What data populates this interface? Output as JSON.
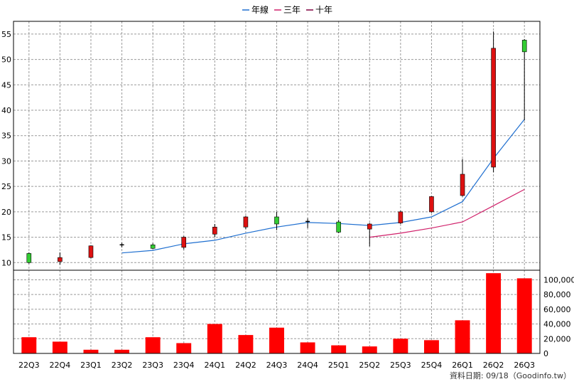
{
  "chart_data": {
    "type": "candlestick",
    "categories": [
      "22Q3",
      "22Q4",
      "23Q1",
      "23Q2",
      "23Q3",
      "23Q4",
      "24Q1",
      "24Q2",
      "24Q3",
      "24Q4",
      "25Q1",
      "25Q2",
      "25Q3",
      "25Q4",
      "26Q1",
      "26Q2",
      "26Q3"
    ],
    "price_axis": {
      "ylim": [
        8.5,
        57.5
      ],
      "ticks": [
        10,
        15,
        20,
        25,
        30,
        35,
        40,
        45,
        50,
        55
      ]
    },
    "volume_axis": {
      "ylim": [
        0,
        113000
      ],
      "ticks": [
        0,
        20000,
        40000,
        60000,
        80000,
        100000
      ],
      "tick_labels": [
        "0",
        "20,000",
        "40,000",
        "60,000",
        "80,000",
        "100,000"
      ]
    },
    "grid": true,
    "legend_position": "top-center",
    "legend": [
      {
        "name": "年線",
        "color": "#1f6fd0"
      },
      {
        "name": "三年",
        "color": "#d0206a"
      },
      {
        "name": "十年",
        "color": "#800040"
      }
    ],
    "candles": [
      {
        "open": 10.0,
        "high": 12.0,
        "low": 9.8,
        "close": 11.8,
        "direction": "up"
      },
      {
        "open": 11.0,
        "high": 12.0,
        "low": 9.6,
        "close": 10.2,
        "direction": "down"
      },
      {
        "open": 13.3,
        "high": 13.4,
        "low": 10.8,
        "close": 11.0,
        "direction": "down"
      },
      {
        "open": 13.3,
        "high": 13.9,
        "low": 13.0,
        "close": 13.5,
        "direction": "flat"
      },
      {
        "open": 12.8,
        "high": 13.8,
        "low": 12.7,
        "close": 13.5,
        "direction": "up"
      },
      {
        "open": 15.0,
        "high": 15.2,
        "low": 12.6,
        "close": 13.0,
        "direction": "down"
      },
      {
        "open": 17.0,
        "high": 17.6,
        "low": 15.0,
        "close": 15.6,
        "direction": "down"
      },
      {
        "open": 19.0,
        "high": 19.2,
        "low": 16.6,
        "close": 17.0,
        "direction": "down"
      },
      {
        "open": 17.6,
        "high": 20.0,
        "low": 16.4,
        "close": 19.0,
        "direction": "up"
      },
      {
        "open": 18.1,
        "high": 18.7,
        "low": 16.8,
        "close": 18.0,
        "direction": "flat"
      },
      {
        "open": 16.0,
        "high": 18.4,
        "low": 15.8,
        "close": 18.0,
        "direction": "up"
      },
      {
        "open": 17.6,
        "high": 17.8,
        "low": 13.2,
        "close": 16.6,
        "direction": "down"
      },
      {
        "open": 20.0,
        "high": 20.2,
        "low": 17.6,
        "close": 17.8,
        "direction": "down"
      },
      {
        "open": 23.0,
        "high": 23.1,
        "low": 19.8,
        "close": 20.0,
        "direction": "down"
      },
      {
        "open": 27.4,
        "high": 30.4,
        "low": 23.0,
        "close": 23.2,
        "direction": "down"
      },
      {
        "open": 52.2,
        "high": 55.5,
        "low": 27.8,
        "close": 28.8,
        "direction": "down"
      },
      {
        "open": 51.5,
        "high": 54.0,
        "low": 38.0,
        "close": 53.8,
        "direction": "up"
      }
    ],
    "series": [
      {
        "name": "年線",
        "color": "#1f6fd0",
        "values": [
          null,
          null,
          null,
          11.9,
          12.4,
          13.7,
          14.4,
          15.8,
          17.0,
          17.9,
          17.7,
          17.3,
          17.9,
          19.0,
          22.0,
          30.5,
          38.2
        ]
      },
      {
        "name": "三年",
        "color": "#d0206a",
        "values": [
          null,
          null,
          null,
          null,
          null,
          null,
          null,
          null,
          null,
          null,
          null,
          15.0,
          15.8,
          16.8,
          18.0,
          21.2,
          24.4
        ]
      },
      {
        "name": "十年",
        "color": "#800040",
        "values": [
          null,
          null,
          null,
          null,
          null,
          null,
          null,
          null,
          null,
          null,
          null,
          null,
          null,
          null,
          null,
          null,
          null
        ]
      }
    ],
    "volume": [
      22000,
      16000,
      5000,
      5000,
      22000,
      14000,
      40000,
      25000,
      35000,
      15000,
      11000,
      9500,
      20000,
      18000,
      45000,
      109000,
      102000
    ]
  },
  "source_text": "資料日期: 09/18（Goodinfo.tw）"
}
